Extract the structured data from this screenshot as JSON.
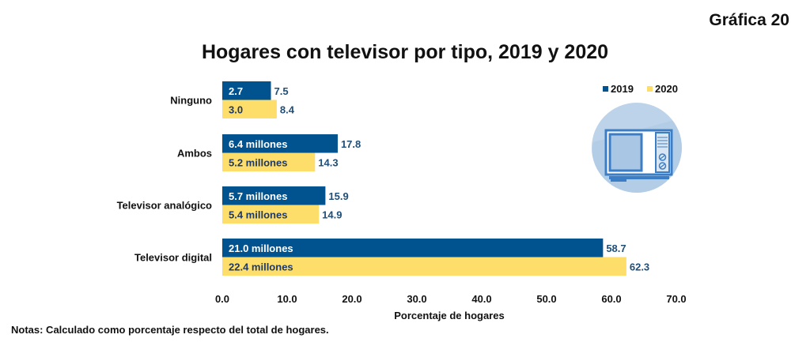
{
  "header": {
    "figure_label": "Gráfica 20",
    "title": "Hogares con televisor por tipo, 2019 y 2020"
  },
  "notes": "Notas: Calculado como porcentaje respecto del total de hogares.",
  "colors": {
    "series_2019": "#00538F",
    "series_2020": "#FDDE6A",
    "label_2019_inner": "#ffffff",
    "label_2020_inner": "#1F3864",
    "value_label": "#1F4E79",
    "icon_circle": "#BCD3EA",
    "icon_tv": "#3C7EC5"
  },
  "icon": "television-icon",
  "chart_data": {
    "type": "bar",
    "orientation": "horizontal",
    "title": "Hogares con televisor por tipo, 2019 y 2020",
    "xlabel": "Porcentaje de hogares",
    "ylabel": "",
    "xlim": [
      0,
      70
    ],
    "xticks": [
      "0.0",
      "10.0",
      "20.0",
      "30.0",
      "40.0",
      "50.0",
      "60.0",
      "70.0"
    ],
    "grid": false,
    "legend_position": "top-right",
    "categories": [
      "Ninguno",
      "Ambos",
      "Televisor analógico",
      "Televisor digital"
    ],
    "series": [
      {
        "name": "2019",
        "values": [
          7.5,
          17.8,
          15.9,
          58.7
        ],
        "inner_labels": [
          "2.7",
          "6.4 millones",
          "5.7 millones",
          "21.0 millones"
        ]
      },
      {
        "name": "2020",
        "values": [
          8.4,
          14.3,
          14.9,
          62.3
        ],
        "inner_labels": [
          "3.0",
          "5.2 millones",
          "5.4 millones",
          "22.4 millones"
        ]
      }
    ]
  }
}
